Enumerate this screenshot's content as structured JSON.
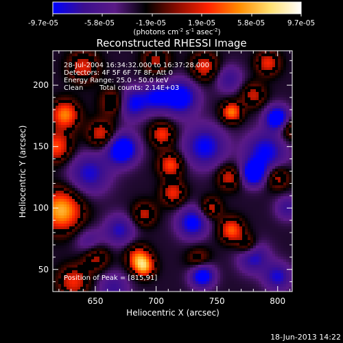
{
  "colorbar": {
    "ticks": [
      "-9.7e-05",
      "-5.8e-05",
      "-1.9e-05",
      "1.9e-05",
      "5.8e-05",
      "9.7e-05"
    ],
    "label_main": "(photons cm",
    "label_exp1": "-2",
    "label_mid": " s",
    "label_exp2": "-1",
    "label_end": " asec",
    "label_exp3": "-2",
    "label_close": ")",
    "stops": [
      "#0000ff",
      "#3b0f8f",
      "#5a1a86",
      "#000000",
      "#8a0c00",
      "#ff2200",
      "#ff8c00",
      "#ffe070",
      "#ffffff"
    ]
  },
  "info": {
    "line1": "28-Jul-2004 16:34:32.000 to 16:37:28.000",
    "line2": "Detectors: 4F 5F 6F 7F 8F, Att 0",
    "line3": "Energy Range: 25.0 - 50.0 keV",
    "line4_left": "Clean",
    "line4_right": "Total counts: 2.14E+03",
    "peak": "Position of Peak = [815,91]"
  },
  "footer": {
    "timestamp": "18-Jun-2013 14:22"
  },
  "chart_data": {
    "type": "heatmap",
    "title": "Reconstructed RHESSI Image",
    "xlabel": "Heliocentric X (arcsec)",
    "ylabel": "Heliocentric Y (arcsec)",
    "xlim": [
      615,
      812
    ],
    "ylim": [
      32,
      228
    ],
    "xticks": [
      650,
      700,
      750,
      800
    ],
    "yticks": [
      50,
      100,
      150,
      200
    ],
    "zlim": [
      -9.7e-05,
      9.7e-05
    ],
    "peak": [
      815,
      91
    ],
    "features": [
      {
        "x": 622,
        "y": 98,
        "v": 1.0,
        "s": 12
      },
      {
        "x": 618,
        "y": 150,
        "v": 0.7,
        "s": 9
      },
      {
        "x": 625,
        "y": 176,
        "v": 0.85,
        "s": 8
      },
      {
        "x": 640,
        "y": 215,
        "v": 0.55,
        "s": 9
      },
      {
        "x": 655,
        "y": 160,
        "v": 0.6,
        "s": 8
      },
      {
        "x": 632,
        "y": 40,
        "v": 0.6,
        "s": 9
      },
      {
        "x": 650,
        "y": 60,
        "v": 0.5,
        "s": 8
      },
      {
        "x": 666,
        "y": 186,
        "v": 0.55,
        "s": 8
      },
      {
        "x": 700,
        "y": 220,
        "v": 0.45,
        "s": 8
      },
      {
        "x": 705,
        "y": 160,
        "v": 0.65,
        "s": 7
      },
      {
        "x": 712,
        "y": 135,
        "v": 0.7,
        "s": 7
      },
      {
        "x": 714,
        "y": 112,
        "v": 0.6,
        "s": 7
      },
      {
        "x": 690,
        "y": 95,
        "v": 0.5,
        "s": 7
      },
      {
        "x": 685,
        "y": 60,
        "v": 0.7,
        "s": 7
      },
      {
        "x": 690,
        "y": 52,
        "v": 0.85,
        "s": 6
      },
      {
        "x": 740,
        "y": 215,
        "v": 0.6,
        "s": 8
      },
      {
        "x": 762,
        "y": 178,
        "v": 0.85,
        "s": 6
      },
      {
        "x": 780,
        "y": 192,
        "v": 0.5,
        "s": 7
      },
      {
        "x": 792,
        "y": 218,
        "v": 0.6,
        "s": 7
      },
      {
        "x": 745,
        "y": 100,
        "v": 0.55,
        "s": 6
      },
      {
        "x": 762,
        "y": 82,
        "v": 0.75,
        "s": 7
      },
      {
        "x": 775,
        "y": 70,
        "v": 0.5,
        "s": 6
      },
      {
        "x": 760,
        "y": 125,
        "v": 0.55,
        "s": 7
      },
      {
        "x": 800,
        "y": 125,
        "v": 0.55,
        "s": 7
      },
      {
        "x": 810,
        "y": 165,
        "v": 0.5,
        "s": 7
      },
      {
        "x": 735,
        "y": 58,
        "v": 0.4,
        "s": 7
      },
      {
        "x": 645,
        "y": 128,
        "v": -0.6,
        "s": 12
      },
      {
        "x": 672,
        "y": 148,
        "v": -1.0,
        "s": 9
      },
      {
        "x": 680,
        "y": 185,
        "v": -0.75,
        "s": 9
      },
      {
        "x": 720,
        "y": 190,
        "v": -0.85,
        "s": 10
      },
      {
        "x": 700,
        "y": 190,
        "v": -0.6,
        "s": 8
      },
      {
        "x": 740,
        "y": 150,
        "v": -0.7,
        "s": 12
      },
      {
        "x": 790,
        "y": 145,
        "v": -0.7,
        "s": 12
      },
      {
        "x": 800,
        "y": 173,
        "v": -1.0,
        "s": 7
      },
      {
        "x": 780,
        "y": 128,
        "v": -0.9,
        "s": 7
      },
      {
        "x": 730,
        "y": 88,
        "v": -0.75,
        "s": 9
      },
      {
        "x": 780,
        "y": 60,
        "v": -0.6,
        "s": 9
      },
      {
        "x": 738,
        "y": 45,
        "v": -0.9,
        "s": 7
      },
      {
        "x": 800,
        "y": 44,
        "v": -0.6,
        "s": 8
      },
      {
        "x": 670,
        "y": 82,
        "v": -0.55,
        "s": 9
      },
      {
        "x": 645,
        "y": 72,
        "v": -0.4,
        "s": 8
      },
      {
        "x": 665,
        "y": 35,
        "v": -0.45,
        "s": 9
      },
      {
        "x": 760,
        "y": 205,
        "v": -0.45,
        "s": 8
      },
      {
        "x": 808,
        "y": 100,
        "v": -0.45,
        "s": 7
      }
    ]
  }
}
